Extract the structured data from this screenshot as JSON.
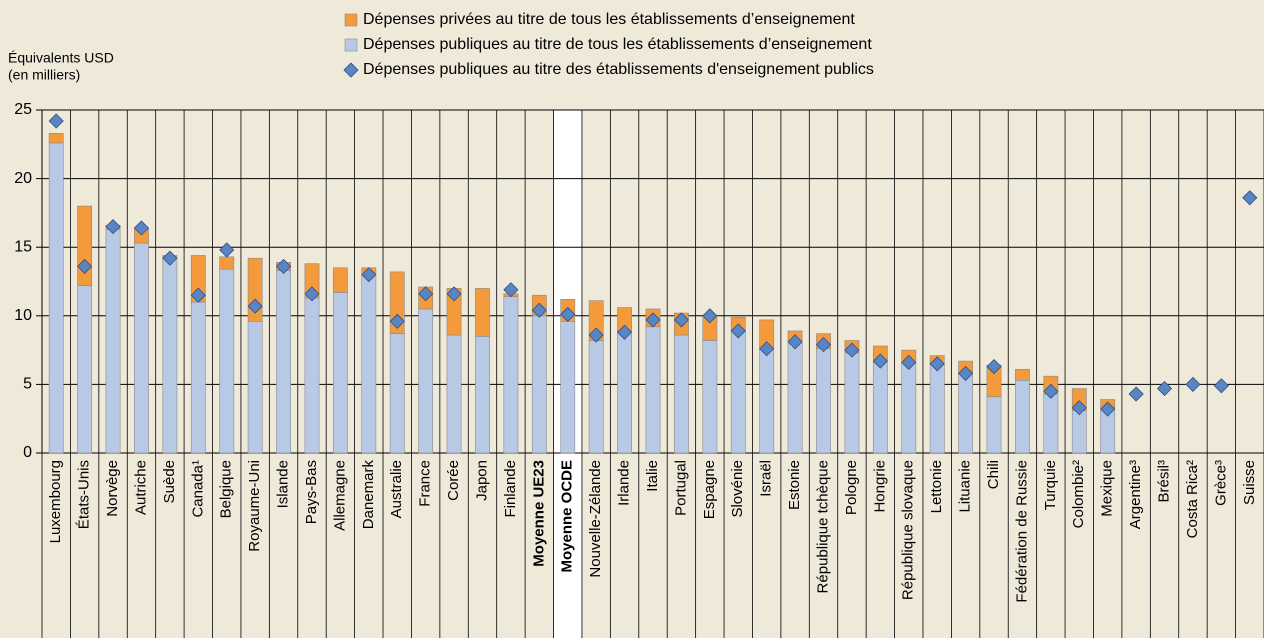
{
  "chart_data": {
    "type": "stacked-bar-diamond",
    "y_label": [
      "Équivalents USD",
      "(en milliers)"
    ],
    "categories": [
      "Luxembourg",
      "États-Unis",
      "Norvège",
      "Autriche",
      "Suède",
      "Canada¹",
      "Belgique",
      "Royaume-Uni",
      "Islande",
      "Pays-Bas",
      "Allemagne",
      "Danemark",
      "Australie",
      "France",
      "Corée",
      "Japon",
      "Finlande",
      "Moyenne UE23",
      "Moyenne OCDE",
      "Nouvelle-Zélande",
      "Irlande",
      "Italie",
      "Portugal",
      "Espagne",
      "Slovénie",
      "Israël",
      "Estonie",
      "République tchèque",
      "Pologne",
      "Hongrie",
      "République slovaque",
      "Lettonie",
      "Lituanie",
      "Chili",
      "Fédération de Russie",
      "Turquie",
      "Colombie²",
      "Mexique",
      "Argentine³",
      "Brésil³",
      "Costa Rica²",
      "Grèce³",
      "Suisse"
    ],
    "bold_categories": [
      "Moyenne UE23",
      "Moyenne OCDE"
    ],
    "highlight": "Moyenne OCDE",
    "series": [
      {
        "name": "Dépenses privées au titre de tous les établissements d’enseignement",
        "color": "#f39a3c",
        "mark": "bar",
        "stack": 1,
        "values": [
          0.7,
          5.8,
          0.3,
          1.1,
          0.2,
          3.4,
          0.9,
          4.6,
          0.6,
          2.5,
          1.8,
          0.5,
          4.5,
          1.6,
          3.4,
          3.5,
          0.2,
          1.5,
          1.6,
          2.9,
          1.7,
          1.3,
          1.6,
          1.8,
          0.9,
          2.1,
          0.7,
          1.1,
          0.9,
          1.0,
          0.9,
          0.6,
          0.8,
          2.3,
          0.8,
          1.3,
          1.6,
          0.6,
          null,
          null,
          null,
          null,
          null
        ]
      },
      {
        "name": "Dépenses publiques au titre de tous les établissements d’enseignement",
        "color": "#b8c9e6",
        "mark": "bar",
        "stack": 0,
        "values": [
          22.6,
          12.2,
          16.3,
          15.3,
          14.2,
          11.0,
          13.4,
          9.6,
          13.3,
          11.3,
          11.7,
          13.0,
          8.7,
          10.5,
          8.6,
          8.5,
          11.4,
          10.0,
          9.6,
          8.2,
          8.9,
          9.2,
          8.6,
          8.2,
          9.0,
          7.6,
          8.2,
          7.6,
          7.3,
          6.8,
          6.6,
          6.5,
          5.9,
          4.1,
          5.3,
          4.3,
          3.1,
          3.3,
          null,
          null,
          null,
          null,
          null
        ]
      },
      {
        "name": "Dépenses publiques au titre des établissements d'enseignement publics",
        "color": "#5a85c4",
        "mark": "diamond",
        "values": [
          24.2,
          13.6,
          16.5,
          16.4,
          14.2,
          11.5,
          14.8,
          10.7,
          13.6,
          11.6,
          null,
          13.0,
          9.6,
          11.6,
          11.6,
          null,
          11.9,
          10.4,
          10.1,
          8.6,
          8.8,
          9.7,
          9.7,
          10.0,
          8.9,
          7.6,
          8.1,
          7.9,
          7.5,
          6.7,
          6.6,
          6.5,
          5.8,
          6.3,
          null,
          4.5,
          3.3,
          3.2,
          4.3,
          4.7,
          5.0,
          4.9,
          18.6
        ]
      }
    ],
    "legend_order": [
      0,
      1,
      2
    ],
    "ylim": [
      0,
      25
    ],
    "yticks": [
      0,
      5,
      10,
      15,
      20,
      25
    ],
    "grid": true
  }
}
